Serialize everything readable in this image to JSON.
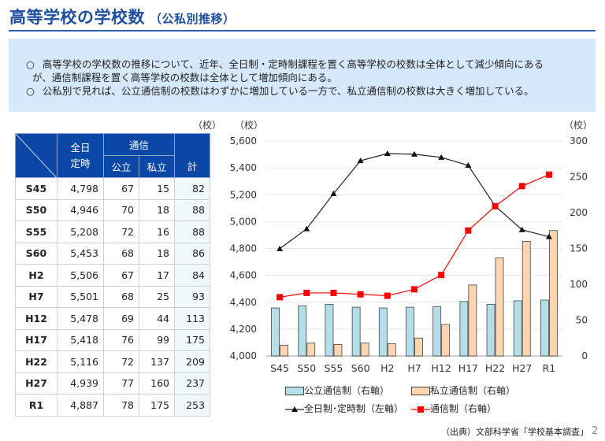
{
  "header": {
    "title": "高等学校の学校数",
    "subtitle": "（公私別推移）"
  },
  "summary": {
    "bullet": "○",
    "line1": "高等学校の学校数の推移について、近年、全日制・定時制課程を置く高等学校の校数は全体として減少傾向にある",
    "line2": "が、通信制課程を置く高等学校の校数は全体として増加傾向にある。",
    "line3": "公私別で見れば、公立通信制の校数はわずかに増加している一方で、私立通信制の校数は大きく増加している。"
  },
  "table": {
    "unit": "（校）",
    "headers": {
      "fulltime_line1": "全日",
      "fulltime_line2": "定時",
      "correspondence": "通信",
      "public": "公立",
      "private": "私立",
      "total": "計"
    },
    "rows": [
      {
        "era": "S45",
        "fulltime": "4,798",
        "public": "67",
        "private": "15",
        "total": "82"
      },
      {
        "era": "S50",
        "fulltime": "4,946",
        "public": "70",
        "private": "18",
        "total": "88"
      },
      {
        "era": "S55",
        "fulltime": "5,208",
        "public": "72",
        "private": "16",
        "total": "88"
      },
      {
        "era": "S60",
        "fulltime": "5,453",
        "public": "68",
        "private": "18",
        "total": "86"
      },
      {
        "era": "H2",
        "fulltime": "5,506",
        "public": "67",
        "private": "17",
        "total": "84"
      },
      {
        "era": "H7",
        "fulltime": "5,501",
        "public": "68",
        "private": "25",
        "total": "93"
      },
      {
        "era": "H12",
        "fulltime": "5,478",
        "public": "69",
        "private": "44",
        "total": "113"
      },
      {
        "era": "H17",
        "fulltime": "5,418",
        "public": "76",
        "private": "99",
        "total": "175"
      },
      {
        "era": "H22",
        "fulltime": "5,116",
        "public": "72",
        "private": "137",
        "total": "209"
      },
      {
        "era": "H27",
        "fulltime": "4,939",
        "public": "77",
        "private": "160",
        "total": "237"
      },
      {
        "era": "R1",
        "fulltime": "4,887",
        "public": "78",
        "private": "175",
        "total": "253"
      }
    ]
  },
  "chart_data": {
    "type": "bar",
    "categories": [
      "S45",
      "S50",
      "S55",
      "S60",
      "H2",
      "H7",
      "H12",
      "H17",
      "H22",
      "H27",
      "R1"
    ],
    "left_axis": {
      "unit": "（校）",
      "ylim": [
        4000,
        5600
      ],
      "ticks": [
        "4,000",
        "4,200",
        "4,400",
        "4,600",
        "4,800",
        "5,000",
        "5,200",
        "5,400",
        "5,600"
      ]
    },
    "right_axis": {
      "unit": "（校）",
      "ylim": [
        0,
        300
      ],
      "ticks": [
        "0",
        "50",
        "100",
        "150",
        "200",
        "250",
        "300"
      ]
    },
    "grid": true,
    "series": [
      {
        "name": "公立通信制（右軸）",
        "type": "bar",
        "axis": "right",
        "color": "#b4dfe9",
        "values": [
          67,
          70,
          72,
          68,
          67,
          68,
          69,
          76,
          72,
          77,
          78
        ]
      },
      {
        "name": "私立通信制（右軸）",
        "type": "bar",
        "axis": "right",
        "color": "#fdd5b1",
        "values": [
          15,
          18,
          16,
          18,
          17,
          25,
          44,
          99,
          137,
          160,
          175
        ]
      },
      {
        "name": "全日制･定時制（左軸）",
        "type": "line",
        "axis": "left",
        "color": "#222222",
        "marker": "triangle",
        "values": [
          4798,
          4946,
          5208,
          5453,
          5506,
          5501,
          5478,
          5418,
          5116,
          4939,
          4887
        ]
      },
      {
        "name": "通信制（右軸）",
        "type": "line",
        "axis": "right",
        "color": "#ff0000",
        "marker": "square",
        "values": [
          82,
          88,
          88,
          86,
          84,
          93,
          113,
          175,
          209,
          237,
          253
        ]
      }
    ],
    "legend_position": "bottom"
  },
  "footer": {
    "source": "（出典）文部科学省「学校基本調査」",
    "page": "2"
  }
}
